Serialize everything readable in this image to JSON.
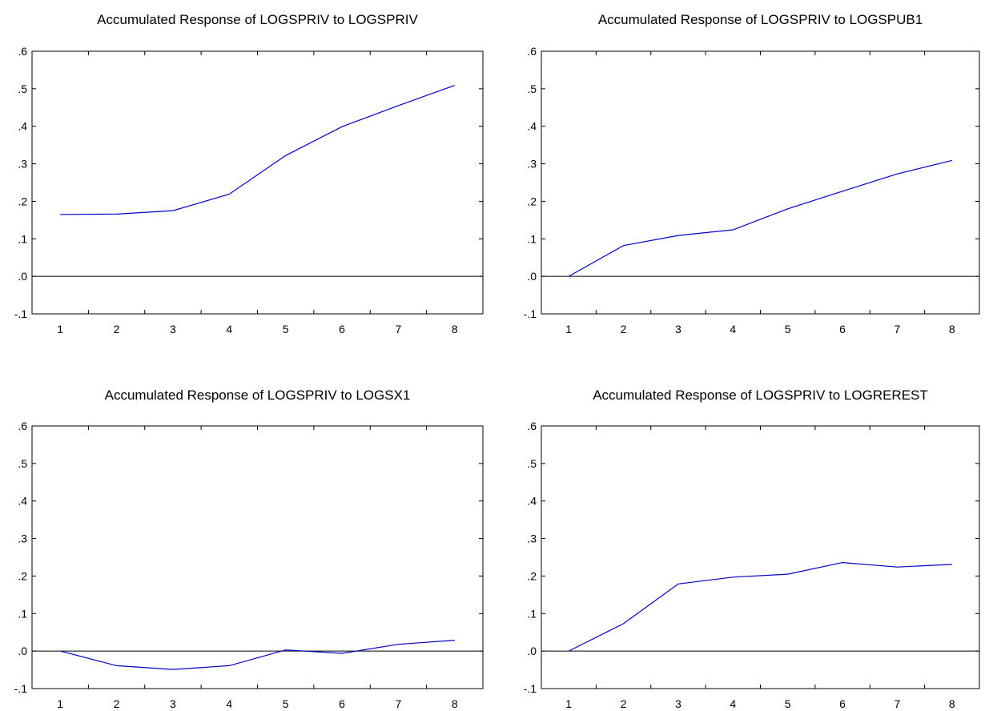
{
  "chart_data": [
    {
      "type": "line",
      "title": "Accumulated Response of LOGSPRIV to LOGSPRIV",
      "x": [
        1,
        2,
        3,
        4,
        5,
        6,
        7,
        8
      ],
      "series": [
        {
          "values": [
            0.165,
            0.166,
            0.175,
            0.219,
            0.322,
            0.399,
            0.455,
            0.509
          ]
        }
      ],
      "ylim": [
        -0.1,
        0.6
      ],
      "yticks": [
        ".6",
        ".5",
        ".4",
        ".3",
        ".2",
        ".1",
        ".0",
        "-.1"
      ],
      "xticks": [
        "1",
        "2",
        "3",
        "4",
        "5",
        "6",
        "7",
        "8"
      ],
      "zero_line": true,
      "grid": false,
      "line_color": "#0000cc"
    },
    {
      "type": "line",
      "title": "Accumulated Response of LOGSPRIV to LOGSPUB1",
      "x": [
        1,
        2,
        3,
        4,
        5,
        6,
        7,
        8
      ],
      "series": [
        {
          "values": [
            0.0,
            0.082,
            0.109,
            0.124,
            0.18,
            0.227,
            0.273,
            0.309
          ]
        }
      ],
      "ylim": [
        -0.1,
        0.6
      ],
      "yticks": [
        ".6",
        ".5",
        ".4",
        ".3",
        ".2",
        ".1",
        ".0",
        "-.1"
      ],
      "xticks": [
        "1",
        "2",
        "3",
        "4",
        "5",
        "6",
        "7",
        "8"
      ],
      "zero_line": true,
      "grid": false,
      "line_color": "#0000cc"
    },
    {
      "type": "line",
      "title": "Accumulated Response of LOGSPRIV to LOGSX1",
      "x": [
        1,
        2,
        3,
        4,
        5,
        6,
        7,
        8
      ],
      "series": [
        {
          "values": [
            0.0,
            -0.039,
            -0.049,
            -0.039,
            0.003,
            -0.006,
            0.018,
            0.029
          ]
        }
      ],
      "ylim": [
        -0.1,
        0.6
      ],
      "yticks": [
        ".6",
        ".5",
        ".4",
        ".3",
        ".2",
        ".1",
        ".0",
        "-.1"
      ],
      "xticks": [
        "1",
        "2",
        "3",
        "4",
        "5",
        "6",
        "7",
        "8"
      ],
      "zero_line": true,
      "grid": false,
      "line_color": "#0000cc"
    },
    {
      "type": "line",
      "title": "Accumulated Response of LOGSPRIV to LOGREREST",
      "x": [
        1,
        2,
        3,
        4,
        5,
        6,
        7,
        8
      ],
      "series": [
        {
          "values": [
            0.0,
            0.073,
            0.179,
            0.197,
            0.205,
            0.236,
            0.224,
            0.231
          ]
        }
      ],
      "ylim": [
        -0.1,
        0.6
      ],
      "yticks": [
        ".6",
        ".5",
        ".4",
        ".3",
        ".2",
        ".1",
        ".0",
        "-.1"
      ],
      "xticks": [
        "1",
        "2",
        "3",
        "4",
        "5",
        "6",
        "7",
        "8"
      ],
      "zero_line": true,
      "grid": false,
      "line_color": "#0000cc"
    }
  ]
}
